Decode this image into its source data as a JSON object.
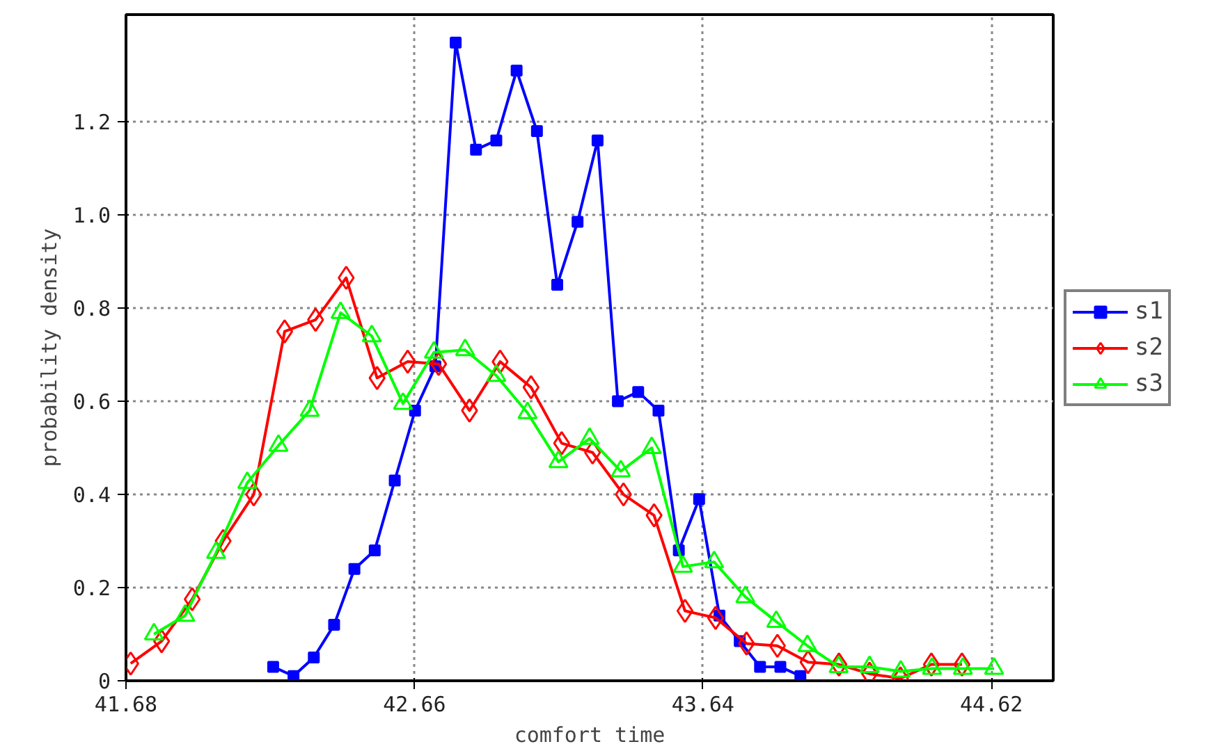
{
  "chart_data": {
    "type": "line",
    "xlabel": "comfort time",
    "ylabel": "probability density",
    "xlim": [
      41.68,
      44.83
    ],
    "ylim": [
      0,
      1.43
    ],
    "xticks": [
      41.68,
      42.66,
      43.64,
      44.62
    ],
    "yticks": [
      0,
      0.2,
      0.4,
      0.6,
      0.8,
      {
        "value": 1,
        "label": "1.0"
      },
      1.2
    ],
    "grid": true,
    "legend": "right",
    "line_style": "solid",
    "series": [
      {
        "name": "s1",
        "color": "#0000ff",
        "marker": "square",
        "x": [
          42.18,
          42.249,
          42.318,
          42.387,
          42.456,
          42.525,
          42.593,
          42.662,
          42.731,
          42.8,
          42.869,
          42.938,
          43.007,
          43.076,
          43.145,
          43.214,
          43.282,
          43.351,
          43.42,
          43.489,
          43.558,
          43.627,
          43.696,
          43.765,
          43.834,
          43.903,
          43.971
        ],
        "values": [
          0.03,
          0.01,
          0.05,
          0.12,
          0.24,
          0.28,
          0.43,
          0.58,
          0.675,
          1.37,
          1.14,
          1.16,
          1.31,
          1.18,
          0.85,
          0.985,
          1.16,
          0.6,
          0.62,
          0.58,
          0.28,
          0.39,
          0.14,
          0.085,
          0.03,
          0.03,
          0.01
        ]
      },
      {
        "name": "s2",
        "color": "#ff0000",
        "marker": "diamond",
        "x": [
          41.696,
          41.801,
          41.905,
          42.01,
          42.114,
          42.219,
          42.324,
          42.428,
          42.533,
          42.637,
          42.742,
          42.847,
          42.951,
          43.056,
          43.16,
          43.265,
          43.37,
          43.474,
          43.579,
          43.683,
          43.788,
          43.893,
          43.997,
          44.102,
          44.206,
          44.311,
          44.416,
          44.52
        ],
        "values": [
          0.037,
          0.085,
          0.175,
          0.3,
          0.4,
          0.75,
          0.775,
          0.865,
          0.65,
          0.685,
          0.68,
          0.58,
          0.685,
          0.63,
          0.51,
          0.49,
          0.4,
          0.355,
          0.15,
          0.135,
          0.08,
          0.075,
          0.04,
          0.035,
          0.015,
          0.005,
          0.035,
          0.035
        ]
      },
      {
        "name": "s3",
        "color": "#00ff00",
        "marker": "triangle",
        "x": [
          41.775,
          41.881,
          41.986,
          42.092,
          42.198,
          42.304,
          42.409,
          42.515,
          42.621,
          42.726,
          42.832,
          42.938,
          43.044,
          43.149,
          43.255,
          43.361,
          43.466,
          43.572,
          43.678,
          43.784,
          43.889,
          43.995,
          44.101,
          44.206,
          44.312,
          44.418,
          44.523,
          44.629
        ],
        "values": [
          0.1,
          0.14,
          0.275,
          0.425,
          0.505,
          0.58,
          0.79,
          0.74,
          0.595,
          0.705,
          0.71,
          0.655,
          0.575,
          0.47,
          0.52,
          0.45,
          0.5,
          0.245,
          0.255,
          0.18,
          0.127,
          0.075,
          0.03,
          0.03,
          0.02,
          0.026,
          0.026,
          0.026
        ]
      }
    ]
  }
}
